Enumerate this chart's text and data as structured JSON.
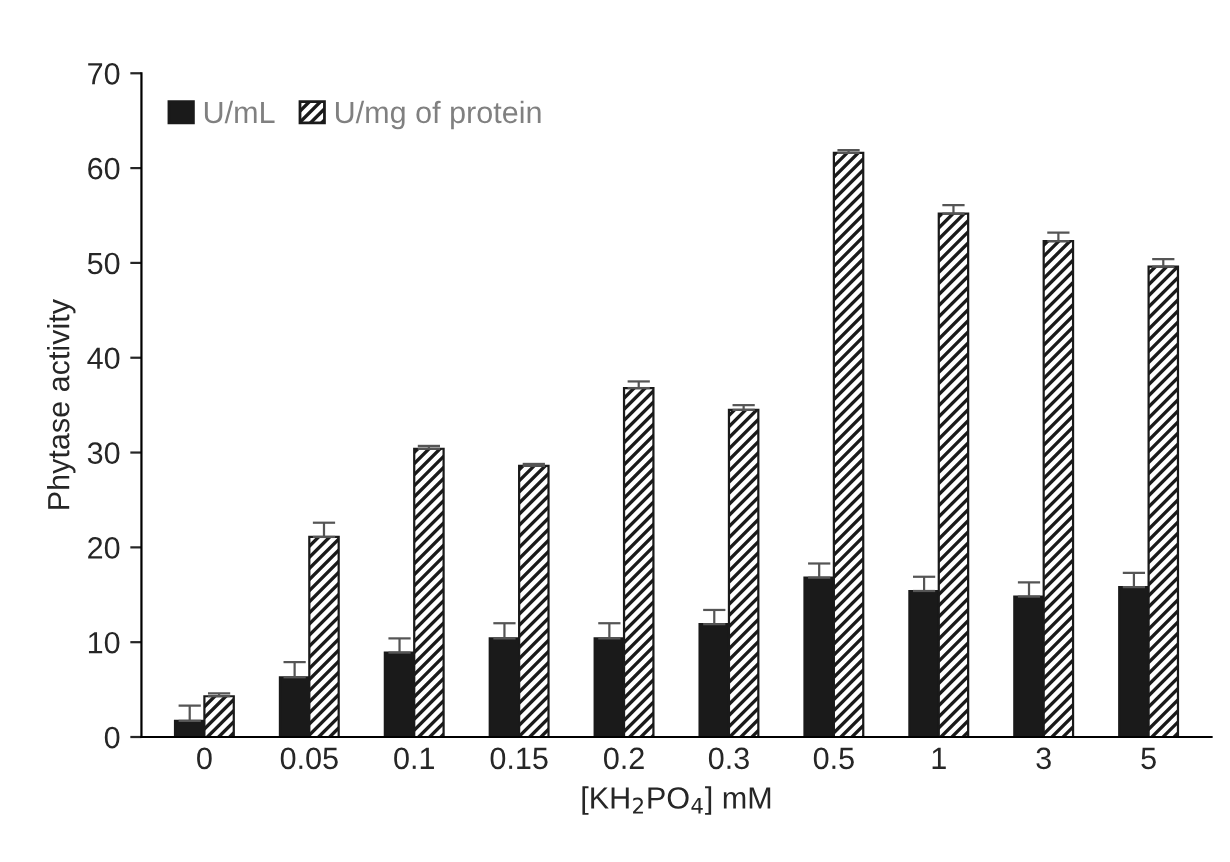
{
  "chart_data": {
    "type": "bar",
    "xlabel": "[KH$_{2}$PO$_{4}$] mM",
    "ylabel": "Phytase activity",
    "categories": [
      "0",
      "0.05",
      "0.1",
      "0.15",
      "0.2",
      "0.3",
      "0.5",
      "1",
      "3",
      "5"
    ],
    "series": [
      {
        "name": "U/mL",
        "color": "#1a1a1a",
        "values": [
          1.7,
          6.3,
          8.9,
          10.4,
          10.4,
          11.9,
          16.8,
          15.4,
          14.8,
          15.8
        ],
        "errors": [
          [
            1.7,
            3.3
          ],
          [
            6.3,
            7.9
          ],
          [
            8.9,
            10.4
          ],
          [
            10.4,
            12.0
          ],
          [
            10.4,
            12.0
          ],
          [
            11.9,
            13.4
          ],
          [
            16.8,
            18.3
          ],
          [
            15.4,
            16.9
          ],
          [
            14.8,
            16.3
          ],
          [
            15.8,
            17.3
          ]
        ]
      },
      {
        "name": "U/mg of protein",
        "color": "#1a1a1a",
        "values": [
          4.3,
          21.1,
          30.4,
          28.6,
          36.8,
          34.5,
          61.6,
          55.2,
          52.3,
          49.6
        ],
        "errors": [
          [
            4.3,
            4.6
          ],
          [
            21.1,
            22.6
          ],
          [
            30.4,
            30.7
          ],
          [
            28.6,
            28.8
          ],
          [
            36.8,
            37.5
          ],
          [
            34.5,
            35.0
          ],
          [
            61.6,
            61.9
          ],
          [
            55.2,
            56.1
          ],
          [
            52.3,
            53.2
          ],
          [
            49.6,
            50.4
          ]
        ]
      }
    ],
    "ylim": [
      0,
      70
    ],
    "yticks": [
      0,
      10,
      20,
      30,
      40,
      50,
      60,
      70
    ],
    "legend": "top left",
    "grid": false
  }
}
